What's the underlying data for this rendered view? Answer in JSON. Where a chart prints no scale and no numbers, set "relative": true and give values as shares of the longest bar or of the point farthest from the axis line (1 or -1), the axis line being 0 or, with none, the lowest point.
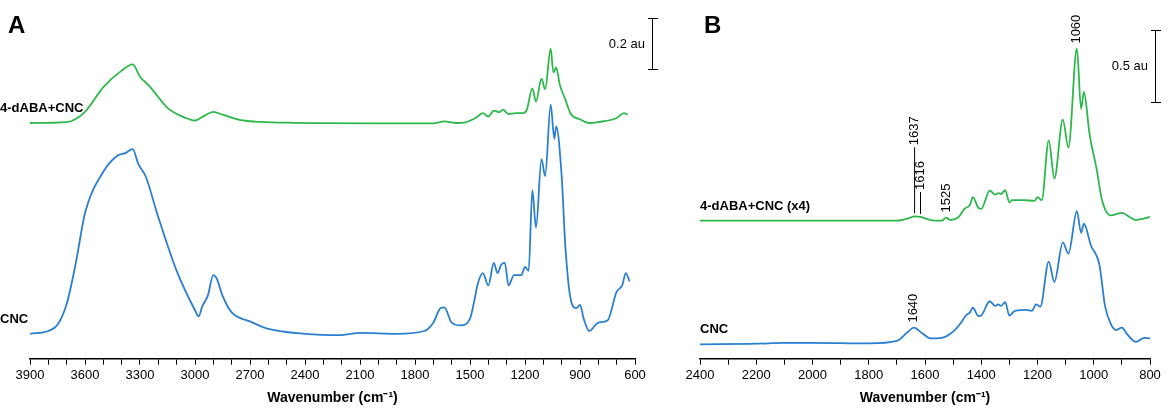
{
  "chart_data": [
    {
      "type": "line",
      "title": "A",
      "xlabel": "Wavenumber (cm⁻¹)",
      "relative": true,
      "legend": false,
      "grid": false,
      "marker": "none",
      "line_style": "solid",
      "xlim": [
        3900,
        600
      ],
      "xticks": [
        3900,
        {
          "value": 3800,
          "label": null
        },
        {
          "value": 3700,
          "label": null
        },
        3600,
        {
          "value": 3500,
          "label": null
        },
        {
          "value": 3400,
          "label": null
        },
        3300,
        {
          "value": 3200,
          "label": null
        },
        {
          "value": 3100,
          "label": null
        },
        3000,
        {
          "value": 2900,
          "label": null
        },
        {
          "value": 2800,
          "label": null
        },
        2700,
        {
          "value": 2600,
          "label": null
        },
        {
          "value": 2500,
          "label": null
        },
        2400,
        {
          "value": 2300,
          "label": null
        },
        {
          "value": 2200,
          "label": null
        },
        2100,
        {
          "value": 2000,
          "label": null
        },
        {
          "value": 1900,
          "label": null
        },
        1800,
        {
          "value": 1700,
          "label": null
        },
        {
          "value": 1600,
          "label": null
        },
        1500,
        {
          "value": 1400,
          "label": null
        },
        {
          "value": 1300,
          "label": null
        },
        1200,
        {
          "value": 1100,
          "label": null
        },
        {
          "value": 1000,
          "label": null
        },
        900,
        {
          "value": 800,
          "label": null
        },
        {
          "value": 700,
          "label": null
        },
        600
      ],
      "annotations": [
        "0.2 au"
      ],
      "series": [
        {
          "name": "4-dABA+CNC",
          "color": "#2db84b",
          "x": [
            3900,
            3700,
            3600,
            3500,
            3400,
            3340,
            3300,
            3250,
            3150,
            3050,
            3000,
            2950,
            2900,
            2850,
            2750,
            2500,
            2000,
            1700,
            1640,
            1580,
            1520,
            1470,
            1430,
            1400,
            1370,
            1340,
            1320,
            1290,
            1250,
            1210,
            1190,
            1160,
            1140,
            1110,
            1090,
            1060,
            1045,
            1030,
            1010,
            980,
            950,
            900,
            850,
            800,
            700,
            660,
            640
          ],
          "values": [
            0.76,
            0.763,
            0.796,
            0.876,
            0.929,
            0.949,
            0.909,
            0.88,
            0.809,
            0.776,
            0.768,
            0.783,
            0.796,
            0.787,
            0.769,
            0.761,
            0.759,
            0.759,
            0.765,
            0.76,
            0.763,
            0.776,
            0.792,
            0.781,
            0.8,
            0.795,
            0.803,
            0.789,
            0.792,
            0.792,
            0.803,
            0.872,
            0.829,
            0.903,
            0.869,
            1.0,
            0.923,
            0.939,
            0.883,
            0.836,
            0.789,
            0.772,
            0.76,
            0.763,
            0.776,
            0.792,
            0.787
          ]
        },
        {
          "name": "CNC",
          "color": "#2a7fd0",
          "x": [
            3900,
            3800,
            3750,
            3700,
            3650,
            3600,
            3500,
            3420,
            3380,
            3340,
            3310,
            3270,
            3200,
            3100,
            3000,
            2980,
            2960,
            2930,
            2900,
            2880,
            2850,
            2800,
            2700,
            2600,
            2400,
            2200,
            2100,
            1900,
            1750,
            1700,
            1660,
            1640,
            1600,
            1550,
            1500,
            1480,
            1460,
            1430,
            1400,
            1370,
            1350,
            1330,
            1310,
            1290,
            1260,
            1220,
            1200,
            1180,
            1160,
            1140,
            1110,
            1090,
            1060,
            1040,
            1030,
            1000,
            980,
            950,
            920,
            900,
            880,
            850,
            800,
            750,
            700,
            670,
            650,
            630
          ],
          "values": [
            0.08,
            0.089,
            0.109,
            0.176,
            0.309,
            0.469,
            0.603,
            0.656,
            0.663,
            0.676,
            0.629,
            0.589,
            0.456,
            0.283,
            0.156,
            0.136,
            0.169,
            0.203,
            0.269,
            0.256,
            0.203,
            0.149,
            0.12,
            0.096,
            0.08,
            0.076,
            0.083,
            0.08,
            0.089,
            0.116,
            0.163,
            0.165,
            0.116,
            0.107,
            0.129,
            0.176,
            0.236,
            0.276,
            0.236,
            0.309,
            0.276,
            0.303,
            0.309,
            0.236,
            0.269,
            0.269,
            0.296,
            0.283,
            0.543,
            0.423,
            0.643,
            0.589,
            0.819,
            0.709,
            0.749,
            0.589,
            0.363,
            0.189,
            0.163,
            0.173,
            0.129,
            0.089,
            0.116,
            0.123,
            0.216,
            0.236,
            0.276,
            0.249
          ]
        }
      ]
    },
    {
      "type": "line",
      "title": "B",
      "xlabel": "Wavenumber (cm⁻¹)",
      "relative": true,
      "legend": false,
      "grid": false,
      "marker": "none",
      "line_style": "solid",
      "xlim": [
        2400,
        800
      ],
      "xticks": [
        2400,
        {
          "value": 2300,
          "label": null
        },
        2200,
        {
          "value": 2100,
          "label": null
        },
        2000,
        {
          "value": 1900,
          "label": null
        },
        1800,
        {
          "value": 1700,
          "label": null
        },
        1600,
        {
          "value": 1500,
          "label": null
        },
        1400,
        {
          "value": 1300,
          "label": null
        },
        1200,
        {
          "value": 1100,
          "label": null
        },
        1000,
        {
          "value": 900,
          "label": null
        },
        800
      ],
      "annotations": [
        "0.5 au",
        {
          "text": "1060",
          "x": 1060,
          "y": 1.0
        },
        {
          "text": "1637",
          "x": 1637,
          "y": 0.459
        },
        {
          "text": "1616",
          "x": 1616,
          "y": 0.457
        },
        {
          "text": "1525",
          "x": 1525,
          "y": 0.455
        },
        {
          "text": "1640",
          "x": 1640,
          "y": 0.1
        }
      ],
      "series": [
        {
          "name": "4-dABA+CNC (x4)",
          "color": "#2db84b",
          "x": [
            2400,
            2000,
            1700,
            1660,
            1637,
            1616,
            1580,
            1540,
            1525,
            1510,
            1480,
            1460,
            1440,
            1430,
            1410,
            1400,
            1370,
            1350,
            1340,
            1330,
            1315,
            1300,
            1290,
            1250,
            1210,
            1200,
            1185,
            1160,
            1140,
            1110,
            1090,
            1060,
            1045,
            1035,
            1015,
            990,
            970,
            940,
            900,
            870,
            850,
            820,
            800
          ],
          "values": [
            0.445,
            0.445,
            0.445,
            0.452,
            0.459,
            0.457,
            0.447,
            0.445,
            0.455,
            0.447,
            0.457,
            0.483,
            0.496,
            0.521,
            0.486,
            0.483,
            0.542,
            0.529,
            0.534,
            0.531,
            0.543,
            0.504,
            0.511,
            0.511,
            0.509,
            0.521,
            0.511,
            0.704,
            0.581,
            0.771,
            0.681,
            1.0,
            0.805,
            0.86,
            0.725,
            0.612,
            0.509,
            0.462,
            0.47,
            0.455,
            0.447,
            0.452,
            0.457
          ]
        },
        {
          "name": "CNC",
          "color": "#2a7fd0",
          "x": [
            2400,
            2200,
            2100,
            2000,
            1800,
            1700,
            1660,
            1640,
            1610,
            1580,
            1540,
            1500,
            1470,
            1455,
            1440,
            1430,
            1410,
            1400,
            1370,
            1350,
            1340,
            1330,
            1315,
            1300,
            1280,
            1240,
            1220,
            1205,
            1190,
            1160,
            1140,
            1110,
            1090,
            1060,
            1045,
            1035,
            1010,
            980,
            960,
            940,
            920,
            900,
            880,
            850,
            820,
            800
          ],
          "values": [
            0.046,
            0.048,
            0.051,
            0.051,
            0.049,
            0.057,
            0.087,
            0.1,
            0.082,
            0.065,
            0.067,
            0.087,
            0.118,
            0.139,
            0.149,
            0.164,
            0.137,
            0.139,
            0.185,
            0.17,
            0.175,
            0.17,
            0.182,
            0.139,
            0.154,
            0.157,
            0.154,
            0.175,
            0.168,
            0.313,
            0.247,
            0.375,
            0.339,
            0.476,
            0.406,
            0.435,
            0.365,
            0.303,
            0.17,
            0.113,
            0.092,
            0.1,
            0.077,
            0.054,
            0.067,
            0.065
          ]
        }
      ]
    }
  ]
}
